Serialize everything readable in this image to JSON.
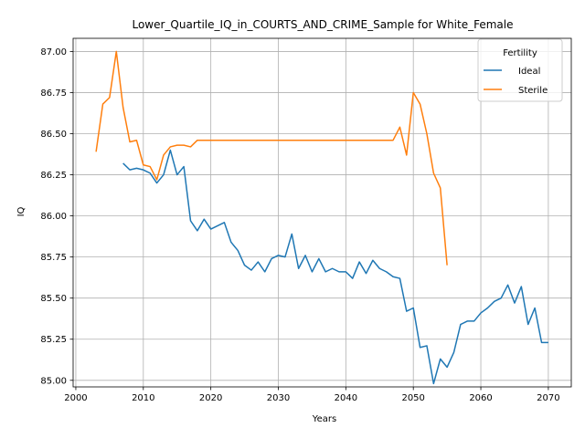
{
  "chart_data": {
    "type": "line",
    "title": "Lower_Quartile_IQ_in_COURTS_AND_CRIME_Sample for White_Female",
    "xlabel": "Years",
    "ylabel": "IQ",
    "xlim": [
      1999.6,
      2073.4
    ],
    "ylim": [
      84.96,
      87.08
    ],
    "xticks": [
      2000,
      2010,
      2020,
      2030,
      2040,
      2050,
      2060,
      2070
    ],
    "yticks": [
      85.0,
      85.25,
      85.5,
      85.75,
      86.0,
      86.25,
      86.5,
      86.75,
      87.0
    ],
    "xtick_labels": [
      "2000",
      "2010",
      "2020",
      "2030",
      "2040",
      "2050",
      "2060",
      "2070"
    ],
    "ytick_labels": [
      "85.00",
      "85.25",
      "85.50",
      "85.75",
      "86.00",
      "86.25",
      "86.50",
      "86.75",
      "87.00"
    ],
    "grid": true,
    "legend": {
      "title": "Fertility",
      "position": "top-right"
    },
    "series": [
      {
        "name": "Ideal",
        "color": "#1f77b4",
        "x": [
          2007,
          2008,
          2009,
          2010,
          2011,
          2012,
          2013,
          2014,
          2015,
          2016,
          2017,
          2018,
          2019,
          2020,
          2021,
          2022,
          2023,
          2024,
          2025,
          2026,
          2027,
          2028,
          2029,
          2030,
          2031,
          2032,
          2033,
          2034,
          2035,
          2036,
          2037,
          2038,
          2039,
          2040,
          2041,
          2042,
          2043,
          2044,
          2045,
          2046,
          2047,
          2048,
          2049,
          2050,
          2051,
          2052,
          2053,
          2054,
          2055,
          2056,
          2057,
          2058,
          2059,
          2060,
          2061,
          2062,
          2063,
          2064,
          2065,
          2066,
          2067,
          2068,
          2069,
          2070
        ],
        "y": [
          86.32,
          86.28,
          86.29,
          86.28,
          86.26,
          86.2,
          86.25,
          86.4,
          86.25,
          86.3,
          85.97,
          85.91,
          85.98,
          85.92,
          85.94,
          85.96,
          85.84,
          85.79,
          85.7,
          85.67,
          85.72,
          85.66,
          85.74,
          85.76,
          85.75,
          85.89,
          85.68,
          85.76,
          85.66,
          85.74,
          85.66,
          85.68,
          85.66,
          85.66,
          85.62,
          85.72,
          85.65,
          85.73,
          85.68,
          85.66,
          85.63,
          85.62,
          85.42,
          85.44,
          85.2,
          85.21,
          84.98,
          85.13,
          85.08,
          85.17,
          85.34,
          85.36,
          85.36,
          85.41,
          85.44,
          85.48,
          85.5,
          85.58,
          85.47,
          85.57,
          85.34,
          85.44,
          85.23,
          85.23
        ]
      },
      {
        "name": "Sterile",
        "color": "#ff7f0e",
        "x": [
          2003,
          2004,
          2005,
          2006,
          2007,
          2008,
          2009,
          2010,
          2011,
          2012,
          2013,
          2014,
          2015,
          2016,
          2017,
          2018,
          2019,
          2020,
          2021,
          2022,
          2023,
          2024,
          2025,
          2026,
          2027,
          2028,
          2029,
          2030,
          2031,
          2032,
          2033,
          2034,
          2035,
          2036,
          2037,
          2038,
          2039,
          2040,
          2041,
          2042,
          2043,
          2044,
          2045,
          2046,
          2047,
          2048,
          2049,
          2050,
          2051,
          2052,
          2053,
          2054,
          2055
        ],
        "y": [
          86.39,
          86.68,
          86.72,
          87.0,
          86.66,
          86.45,
          86.46,
          86.31,
          86.3,
          86.22,
          86.37,
          86.42,
          86.43,
          86.43,
          86.42,
          86.46,
          86.46,
          86.46,
          86.46,
          86.46,
          86.46,
          86.46,
          86.46,
          86.46,
          86.46,
          86.46,
          86.46,
          86.46,
          86.46,
          86.46,
          86.46,
          86.46,
          86.46,
          86.46,
          86.46,
          86.46,
          86.46,
          86.46,
          86.46,
          86.46,
          86.46,
          86.46,
          86.46,
          86.46,
          86.46,
          86.54,
          86.37,
          86.75,
          86.68,
          86.5,
          86.26,
          86.17,
          85.7
        ]
      }
    ]
  }
}
